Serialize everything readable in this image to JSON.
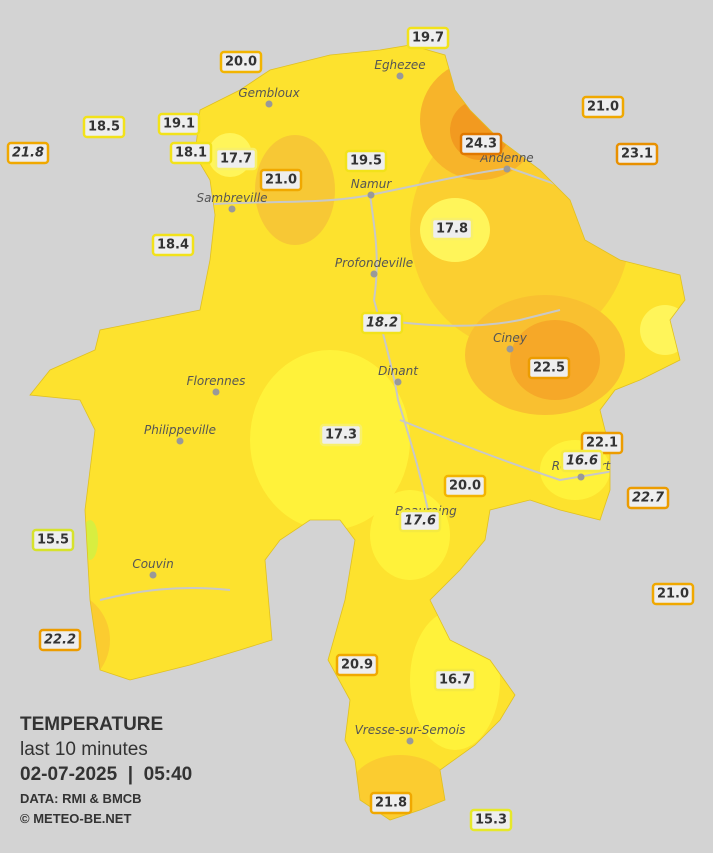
{
  "map": {
    "title": "TEMPERATURE",
    "subtitle": "last 10 minutes",
    "datetime": "02-07-2025  |  05:40",
    "source": "DATA: RMI & BMCB",
    "credit": "© METEO-BE.NET",
    "stations": [
      {
        "label": "19.7",
        "color": "#f2e21a"
      },
      {
        "label": "20.0",
        "color": "#f2b400"
      },
      {
        "label": "18.5",
        "color": "#f2e21a"
      },
      {
        "label": "19.1",
        "color": "#f2e21a"
      },
      {
        "label": "21.8",
        "color": "#f0a800",
        "italic": true
      },
      {
        "label": "18.1",
        "color": "#f2e21a"
      },
      {
        "label": "17.7",
        "color": "#f8f06a"
      },
      {
        "label": "21.0",
        "color": "#f0a800"
      },
      {
        "label": "19.5",
        "color": "#f2e21a"
      },
      {
        "label": "24.3",
        "color": "#e07800"
      },
      {
        "label": "21.0",
        "color": "#f0a800"
      },
      {
        "label": "23.1",
        "color": "#e89000"
      },
      {
        "label": "17.8",
        "color": "#f8f06a"
      },
      {
        "label": "18.4",
        "color": "#f2e21a"
      },
      {
        "label": "18.2",
        "color": "#f2e21a",
        "italic": true
      },
      {
        "label": "22.5",
        "color": "#ec9c00"
      },
      {
        "label": "17.3",
        "color": "#f8f06a"
      },
      {
        "label": "22.1",
        "color": "#ec9c00"
      },
      {
        "label": "16.6",
        "color": "#f5ea40",
        "italic": true
      },
      {
        "label": "22.7",
        "color": "#ec9c00",
        "italic": true
      },
      {
        "label": "20.0",
        "color": "#f2b400"
      },
      {
        "label": "17.6",
        "color": "#f5ea40",
        "italic": true
      },
      {
        "label": "15.5",
        "color": "#d6e22c"
      },
      {
        "label": "21.0",
        "color": "#f0a800"
      },
      {
        "label": "22.2",
        "color": "#ec9c00",
        "italic": true
      },
      {
        "label": "20.9",
        "color": "#f0a800"
      },
      {
        "label": "16.7",
        "color": "#f5ea40"
      },
      {
        "label": "21.8",
        "color": "#f0a800"
      },
      {
        "label": "15.3",
        "color": "#e6e82a"
      }
    ],
    "cities": [
      "Eghezee",
      "Gembloux",
      "Andenne",
      "Namur",
      "Sambreville",
      "Profondeville",
      "Ciney",
      "Dinant",
      "Florennes",
      "Philippeville",
      "Rochefort",
      "Beauraing",
      "Couvin",
      "Vresse-sur-Semois"
    ]
  }
}
